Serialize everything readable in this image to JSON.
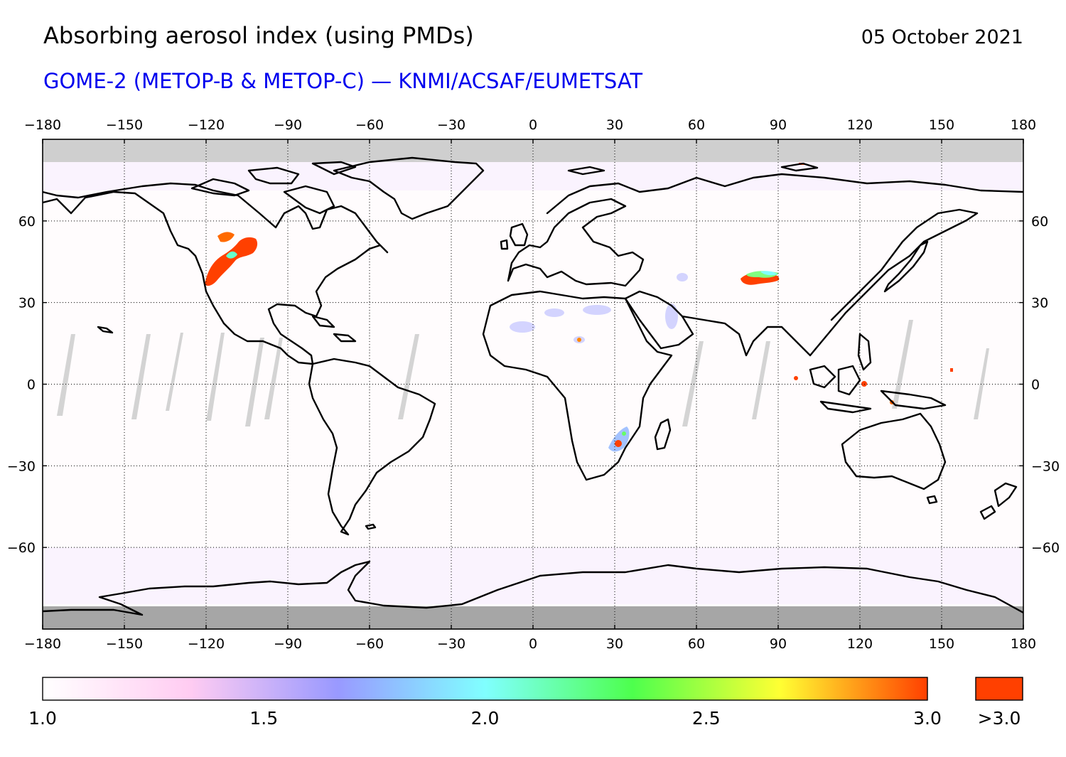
{
  "header": {
    "title": "Absorbing aerosol index (using PMDs)",
    "date": "05 October 2021",
    "subtitle": "GOME-2 (METOP-B & METOP-C) — KNMI/ACSAF/EUMETSAT"
  },
  "map": {
    "projection": "equirectangular",
    "lon_range": [
      -180,
      180
    ],
    "lat_range": [
      -90,
      90
    ],
    "lon_ticks": [
      -180,
      -150,
      -120,
      -90,
      -60,
      -30,
      0,
      30,
      60,
      90,
      120,
      150,
      180
    ],
    "lat_ticks": [
      60,
      30,
      0,
      -30,
      -60
    ],
    "gridlines": true,
    "no_data_color": "#cccccc",
    "polar_fill_color": "#a6a6a6",
    "coast_color": "#000000",
    "aerosol_plumes": [
      {
        "region": "western North America",
        "level": "high"
      },
      {
        "region": "central Asia",
        "level": "high"
      },
      {
        "region": "southern Africa",
        "level": "medium"
      },
      {
        "region": "Sahara / Arabia",
        "level": "low"
      }
    ]
  },
  "colorbar": {
    "min": 1.0,
    "max": 3.0,
    "tick_labels": [
      "1.0",
      "1.5",
      "2.0",
      "2.5",
      "3.0"
    ],
    "overflow_label": ">3.0",
    "overflow_color": "#ff4000",
    "stops": [
      "#ffffff",
      "#ffccf2",
      "#9999ff",
      "#80ffff",
      "#4dff4d",
      "#ffff33",
      "#ff4000"
    ]
  }
}
